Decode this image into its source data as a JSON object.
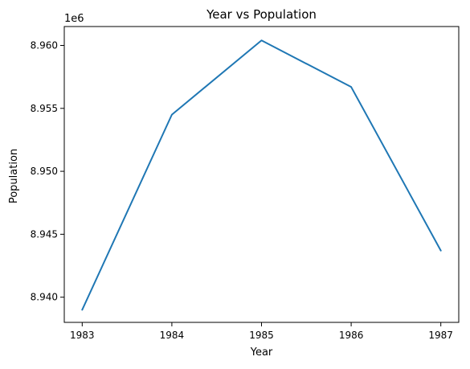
{
  "chart_data": {
    "type": "line",
    "title": "Year vs Population",
    "xlabel": "Year",
    "ylabel": "Population",
    "offset_label": "1e6",
    "x": [
      1983,
      1984,
      1985,
      1986,
      1987
    ],
    "series": [
      {
        "values": [
          8939000,
          8954500,
          8960400,
          8956700,
          8943700
        ],
        "color": "#1f77b4"
      }
    ],
    "xticks": [
      "1983",
      "1984",
      "1985",
      "1986",
      "1987"
    ],
    "yticks": [
      "8.940",
      "8.945",
      "8.950",
      "8.955",
      "8.960"
    ],
    "xlim": [
      1982.8,
      1987.2
    ],
    "ylim": [
      8938000,
      8961500
    ],
    "grid": false,
    "legend": "none"
  }
}
